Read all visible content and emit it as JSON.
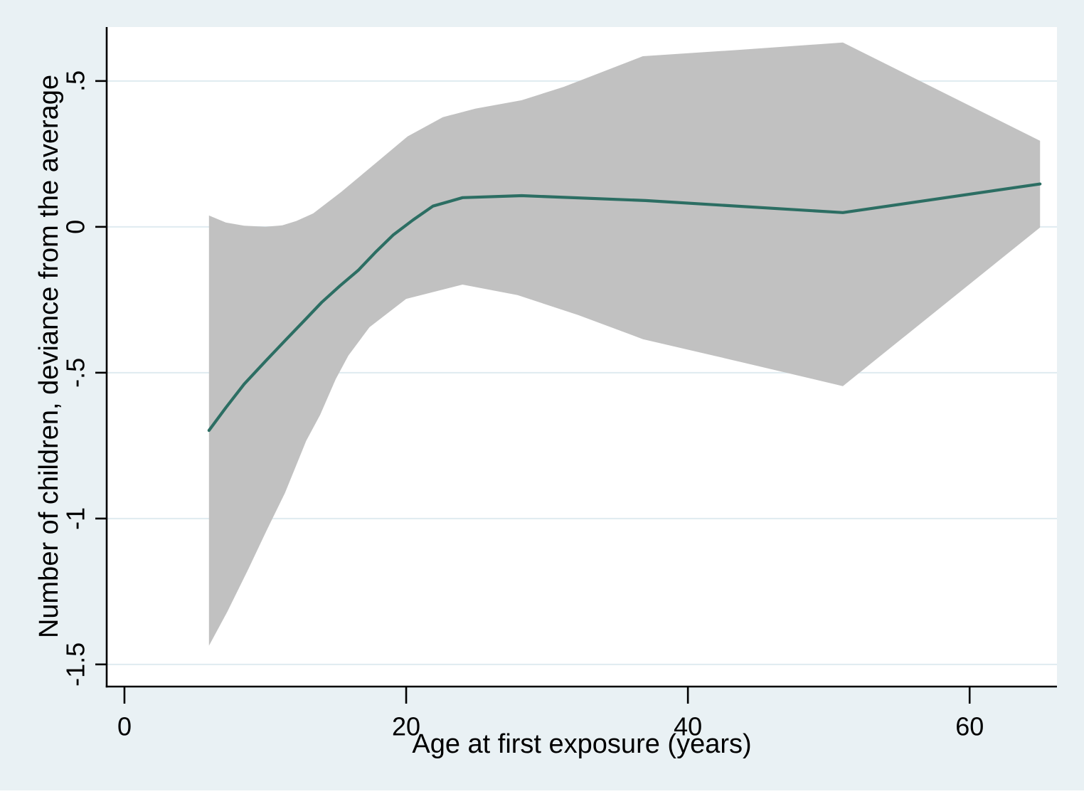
{
  "figure": {
    "background_color": "#e9f1f4",
    "plot_background": "#ffffff",
    "grid_color": "#dfebf0",
    "axis_color": "#000000",
    "band_color": "#c1c1c1",
    "line_color": "#2c6e63"
  },
  "chart_data": {
    "type": "line",
    "title": "",
    "xlabel": "Age at first exposure (years)",
    "ylabel": "Number of children, deviance from the average",
    "grid": "horizontal",
    "legend": "none",
    "xlim": [
      -1.26,
      66.2
    ],
    "ylim": [
      -1.576,
      0.685
    ],
    "x_ticks": [
      {
        "value": 0,
        "label": "0"
      },
      {
        "value": 20,
        "label": "20"
      },
      {
        "value": 40,
        "label": "40"
      },
      {
        "value": 60,
        "label": "60"
      }
    ],
    "y_ticks": [
      {
        "value": 0.5,
        "label": ".5"
      },
      {
        "value": 0,
        "label": "0"
      },
      {
        "value": -0.5,
        "label": "-.5"
      },
      {
        "value": -1,
        "label": "-1"
      },
      {
        "value": -1.5,
        "label": "-1.5"
      }
    ],
    "series": [
      {
        "name": "estimate",
        "type": "line",
        "points": [
          [
            6,
            -0.698
          ],
          [
            7.2,
            -0.62
          ],
          [
            8.5,
            -0.539
          ],
          [
            10,
            -0.461
          ],
          [
            11.5,
            -0.385
          ],
          [
            12.8,
            -0.32
          ],
          [
            14,
            -0.259
          ],
          [
            15.3,
            -0.202
          ],
          [
            16.6,
            -0.149
          ],
          [
            17.8,
            -0.088
          ],
          [
            19.1,
            -0.027
          ],
          [
            20.5,
            0.024
          ],
          [
            21.9,
            0.071
          ],
          [
            24,
            0.1
          ],
          [
            28.2,
            0.107
          ],
          [
            37,
            0.09
          ],
          [
            51,
            0.049
          ],
          [
            65,
            0.147
          ]
        ]
      },
      {
        "name": "confidence-band",
        "type": "area",
        "upper": [
          [
            6,
            0.039
          ],
          [
            7.2,
            0.015
          ],
          [
            8.5,
            0.004
          ],
          [
            10,
            0.0
          ],
          [
            11.2,
            0.005
          ],
          [
            12.2,
            0.02
          ],
          [
            13.4,
            0.046
          ],
          [
            15.4,
            0.12
          ],
          [
            17.8,
            0.217
          ],
          [
            20.1,
            0.31
          ],
          [
            22.6,
            0.376
          ],
          [
            24.9,
            0.405
          ],
          [
            28.2,
            0.434
          ],
          [
            31.2,
            0.48
          ],
          [
            36.8,
            0.585
          ],
          [
            43.7,
            0.607
          ],
          [
            51,
            0.632
          ],
          [
            65,
            0.295
          ]
        ],
        "lower": [
          [
            6,
            -1.436
          ],
          [
            7.3,
            -1.32
          ],
          [
            8.8,
            -1.173
          ],
          [
            10.1,
            -1.04
          ],
          [
            11.4,
            -0.912
          ],
          [
            12.9,
            -0.734
          ],
          [
            13.9,
            -0.644
          ],
          [
            15,
            -0.522
          ],
          [
            15.9,
            -0.441
          ],
          [
            17.4,
            -0.344
          ],
          [
            20,
            -0.247
          ],
          [
            24,
            -0.198
          ],
          [
            27.9,
            -0.234
          ],
          [
            32.2,
            -0.302
          ],
          [
            36.8,
            -0.385
          ],
          [
            41.8,
            -0.441
          ],
          [
            51,
            -0.546
          ],
          [
            65,
            -0.002
          ]
        ]
      }
    ]
  }
}
